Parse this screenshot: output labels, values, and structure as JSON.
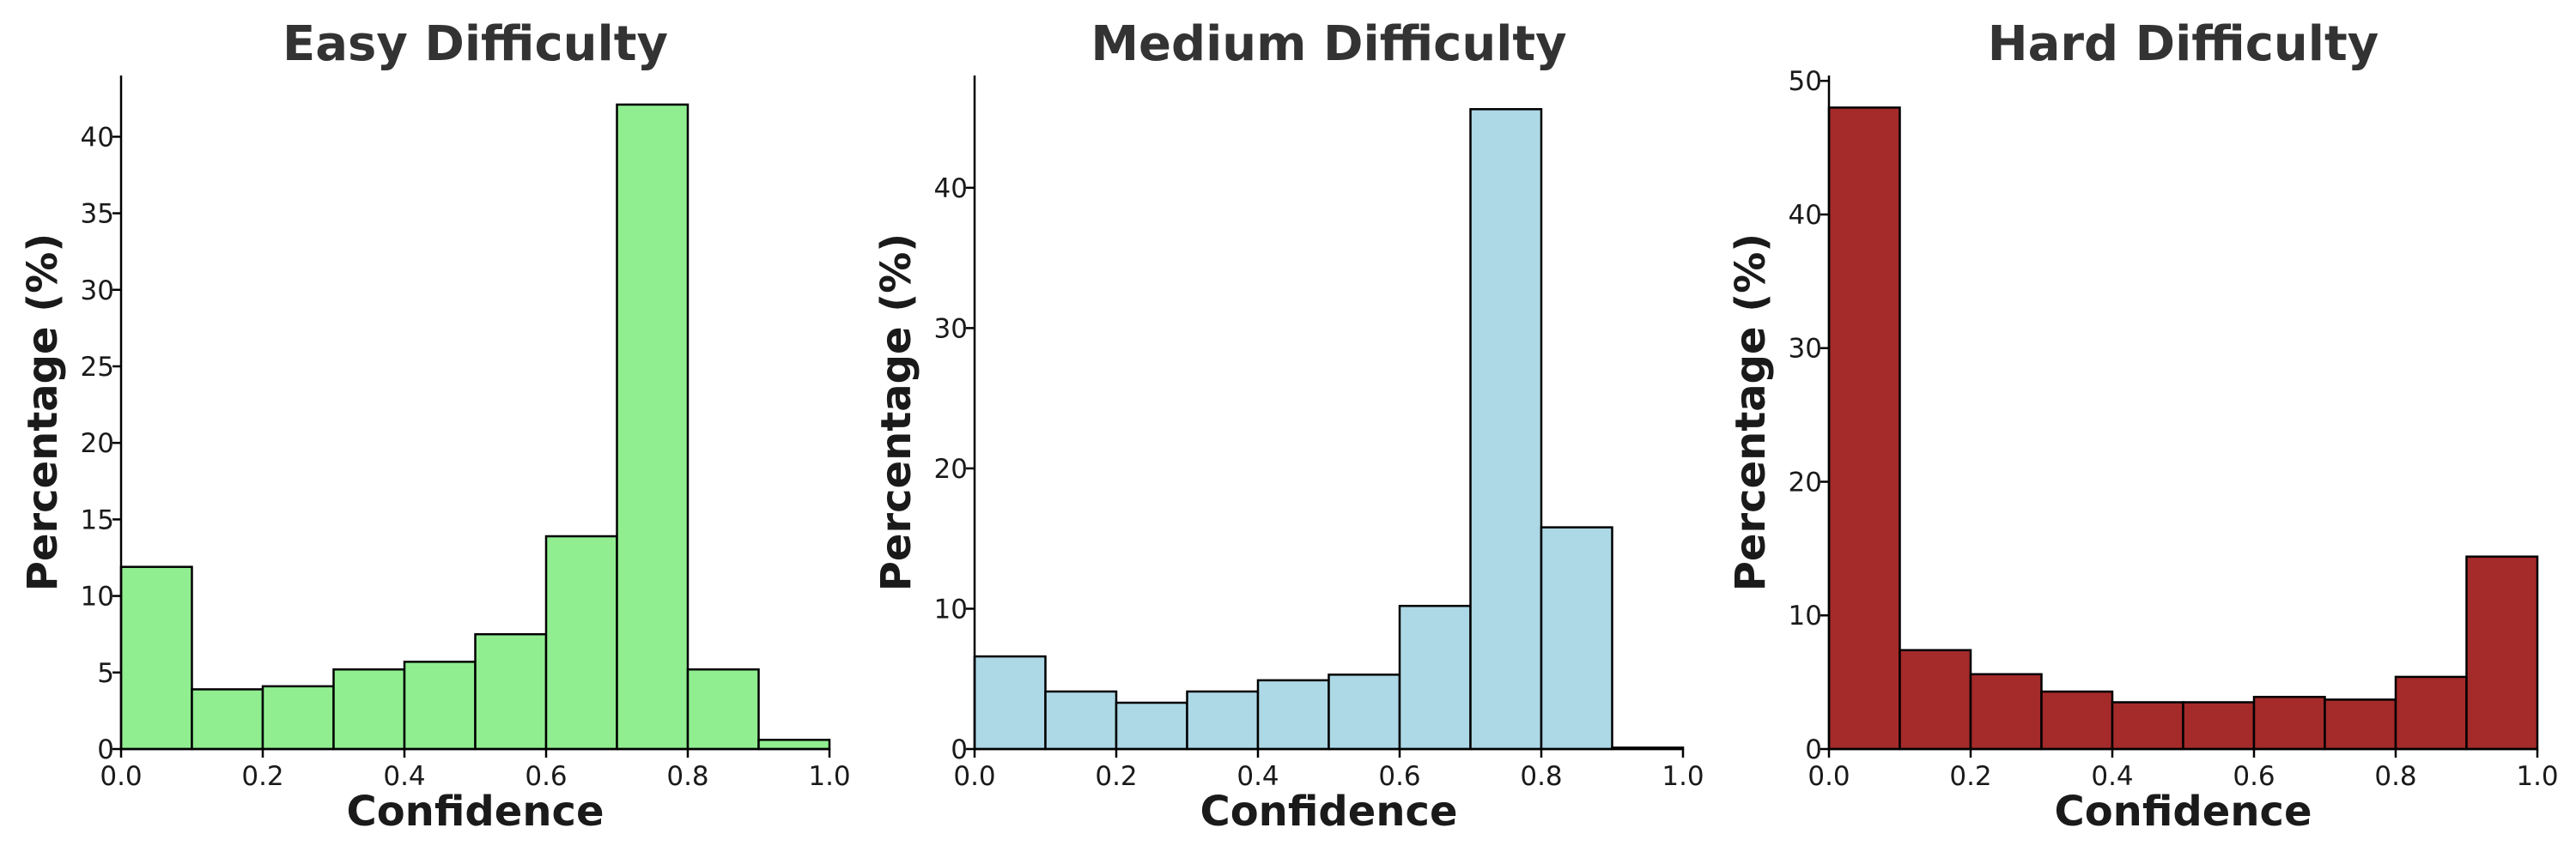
{
  "chart_data": [
    {
      "type": "bar",
      "title": "Easy Difficulty",
      "xlabel": "Confidence",
      "ylabel": "Percentage (%)",
      "color": "#90ee90",
      "bin_edges": [
        0.0,
        0.1,
        0.2,
        0.3,
        0.4,
        0.5,
        0.6,
        0.7,
        0.8,
        0.9,
        1.0
      ],
      "values": [
        11.9,
        3.9,
        4.1,
        5.2,
        5.7,
        7.5,
        13.9,
        42.1,
        5.2,
        0.6
      ],
      "xlim": [
        0.0,
        1.0
      ],
      "ylim": [
        0,
        44
      ],
      "xticks": [
        0.0,
        0.2,
        0.4,
        0.6,
        0.8,
        1.0
      ],
      "xtick_labels": [
        "0.0",
        "0.2",
        "0.4",
        "0.6",
        "0.8",
        "1.0"
      ],
      "yticks": [
        0,
        5,
        10,
        15,
        20,
        25,
        30,
        35,
        40
      ],
      "ytick_labels": [
        "0",
        "5",
        "10",
        "15",
        "20",
        "25",
        "30",
        "35",
        "40"
      ],
      "grid": false
    },
    {
      "type": "bar",
      "title": "Medium Difficulty",
      "xlabel": "Confidence",
      "ylabel": "Percentage (%)",
      "color": "#add8e6",
      "bin_edges": [
        0.0,
        0.1,
        0.2,
        0.3,
        0.4,
        0.5,
        0.6,
        0.7,
        0.8,
        0.9,
        1.0
      ],
      "values": [
        6.6,
        4.1,
        3.3,
        4.1,
        4.9,
        5.3,
        10.2,
        45.6,
        15.8,
        0.1
      ],
      "xlim": [
        0.0,
        1.0
      ],
      "ylim": [
        0,
        48
      ],
      "xticks": [
        0.0,
        0.2,
        0.4,
        0.6,
        0.8,
        1.0
      ],
      "xtick_labels": [
        "0.0",
        "0.2",
        "0.4",
        "0.6",
        "0.8",
        "1.0"
      ],
      "yticks": [
        0,
        10,
        20,
        30,
        40
      ],
      "ytick_labels": [
        "0",
        "10",
        "20",
        "30",
        "40"
      ],
      "grid": false
    },
    {
      "type": "bar",
      "title": "Hard Difficulty",
      "xlabel": "Confidence",
      "ylabel": "Percentage (%)",
      "color": "#a52a2a",
      "bin_edges": [
        0.0,
        0.1,
        0.2,
        0.3,
        0.4,
        0.5,
        0.6,
        0.7,
        0.8,
        0.9,
        1.0
      ],
      "values": [
        48.0,
        7.4,
        5.6,
        4.3,
        3.5,
        3.5,
        3.9,
        3.7,
        5.4,
        14.4
      ],
      "xlim": [
        0.0,
        1.0
      ],
      "ylim": [
        0,
        50.4
      ],
      "xticks": [
        0.0,
        0.2,
        0.4,
        0.6,
        0.8,
        1.0
      ],
      "xtick_labels": [
        "0.0",
        "0.2",
        "0.4",
        "0.6",
        "0.8",
        "1.0"
      ],
      "yticks": [
        0,
        10,
        20,
        30,
        40,
        50
      ],
      "ytick_labels": [
        "0",
        "10",
        "20",
        "30",
        "40",
        "50"
      ],
      "grid": false
    }
  ]
}
